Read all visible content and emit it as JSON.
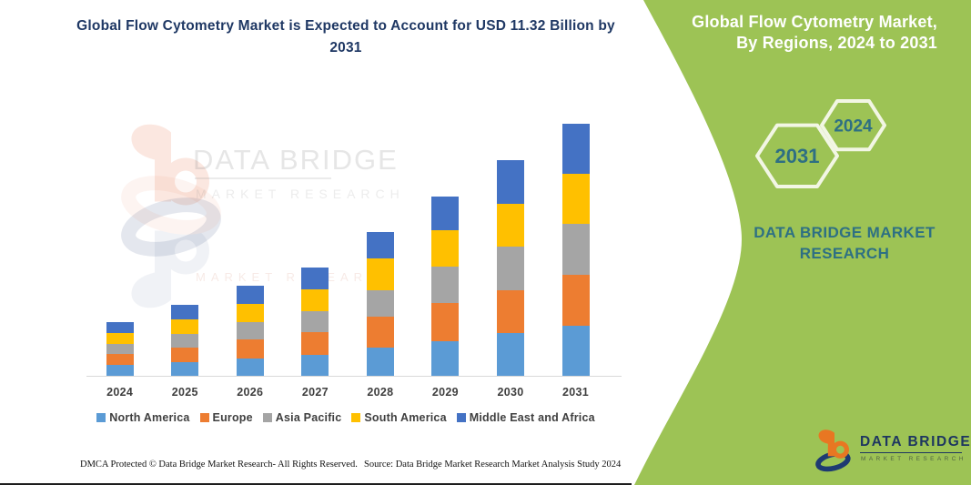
{
  "left": {
    "title": "Global Flow Cytometry Market is Expected to Account for USD 11.32 Billion by 2031",
    "watermark": {
      "logo": "data-bridge-b-logo",
      "line1": "DATA BRIDGE",
      "line2": "MARKET RESEARCH",
      "line3": "MARKET RESEARCH"
    },
    "footer_left": "DMCA Protected © Data Bridge Market Research-  All Rights Reserved.",
    "footer_right": "Source: Data Bridge Market Research  Market Analysis Study 2024"
  },
  "chart_data": {
    "type": "bar",
    "stacked": true,
    "title": "Global Flow Cytometry Market is Expected to Account for USD 11.32 Billion by 2031",
    "unit": "USD Billion",
    "categories": [
      "2024",
      "2025",
      "2026",
      "2027",
      "2028",
      "2029",
      "2030",
      "2031"
    ],
    "series": [
      {
        "name": "North America",
        "color": "#5B9BD5",
        "values": [
          0.5,
          0.62,
          0.78,
          0.95,
          1.28,
          1.55,
          1.92,
          2.25
        ]
      },
      {
        "name": "Europe",
        "color": "#ED7D31",
        "values": [
          0.48,
          0.66,
          0.85,
          1.0,
          1.39,
          1.7,
          1.94,
          2.28
        ]
      },
      {
        "name": "Asia Pacific",
        "color": "#A5A5A5",
        "values": [
          0.47,
          0.62,
          0.78,
          0.96,
          1.19,
          1.65,
          1.96,
          2.3
        ]
      },
      {
        "name": "South America",
        "color": "#FFC000",
        "values": [
          0.46,
          0.65,
          0.82,
          0.97,
          1.43,
          1.62,
          1.89,
          2.25
        ]
      },
      {
        "name": "Middle East and Africa",
        "color": "#4472C4",
        "values": [
          0.49,
          0.65,
          0.82,
          0.97,
          1.17,
          1.55,
          1.97,
          2.24
        ]
      }
    ],
    "totals": [
      2.4,
      3.2,
      4.05,
      4.85,
      6.46,
      8.07,
      9.68,
      11.32
    ],
    "ylim": [
      0,
      11.5
    ],
    "xlabel": "",
    "ylabel": "",
    "gridlines": false,
    "y_axis_visible": false,
    "legend_position": "bottom"
  },
  "panel": {
    "title_line1": "Global Flow Cytometry Market,",
    "title_line2": "By Regions, 2024 to 2031",
    "hexagons": [
      {
        "label": "2031"
      },
      {
        "label": "2024"
      }
    ],
    "brand_line1": "DATA BRIDGE MARKET",
    "brand_line2": "RESEARCH",
    "logo": {
      "name": "DATA BRIDGE",
      "sub": "MARKET RESEARCH"
    },
    "colors": {
      "panel_green": "#9DC355",
      "teal_text": "#2E7083",
      "title_navy": "#1F3864",
      "hex_outline": "#F2F6E4"
    }
  }
}
